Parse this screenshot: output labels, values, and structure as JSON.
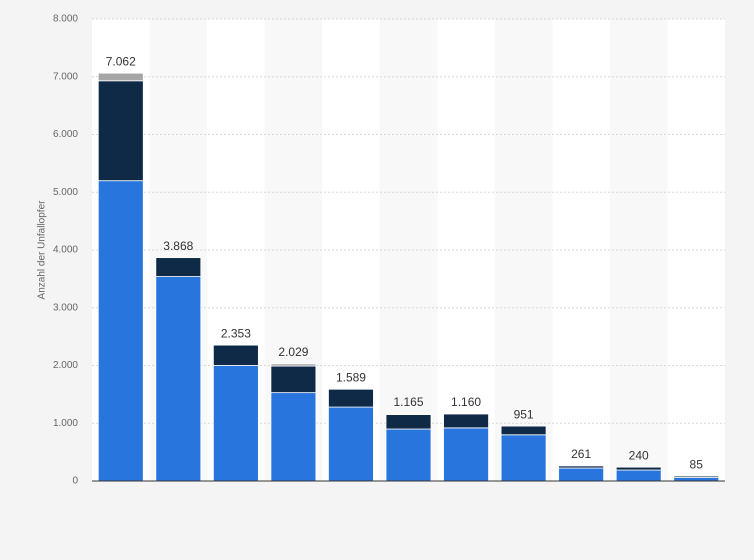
{
  "chart_data": {
    "type": "stacked_bar",
    "y_label": "Anzahl der Unfallopfer",
    "categories": [
      null,
      null,
      null,
      null,
      null,
      null,
      null,
      null,
      null,
      null,
      null
    ],
    "series": [
      {
        "color": "#2876dd",
        "values": [
          5200,
          3540,
          2000,
          1530,
          1280,
          900,
          920,
          800,
          225,
          190,
          60
        ]
      },
      {
        "color": "#0f2a47",
        "values": [
          1730,
          328,
          353,
          460,
          309,
          250,
          240,
          151,
          36,
          50,
          25
        ]
      },
      {
        "color": "#a6a6a6",
        "values": [
          132,
          0,
          0,
          39,
          0,
          15,
          0,
          0,
          0,
          0,
          0
        ]
      }
    ],
    "totals": {
      "values": [
        7062,
        3868,
        2353,
        2029,
        1589,
        1165,
        1160,
        951,
        261,
        240,
        85
      ],
      "value_labels": [
        "7.062",
        "3.868",
        "2.353",
        "2.029",
        "1.589",
        "1.165",
        "1.160",
        "951",
        "261",
        "240",
        "85"
      ]
    },
    "ylim": [
      0,
      8000
    ],
    "yticks": [
      0,
      {
        "value": 1000,
        "label": "1.000"
      },
      {
        "value": 2000,
        "label": "2.000"
      },
      {
        "value": 3000,
        "label": "3.000"
      },
      {
        "value": 4000,
        "label": "4.000"
      },
      {
        "value": 5000,
        "label": "5.000"
      },
      {
        "value": 6000,
        "label": "6.000"
      },
      {
        "value": 7000,
        "label": "7.000"
      },
      {
        "value": 8000,
        "label": "8.000"
      }
    ],
    "grid": true
  }
}
